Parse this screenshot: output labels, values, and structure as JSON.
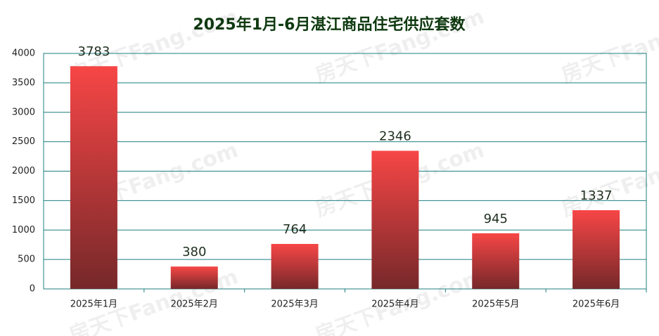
{
  "chart_data": {
    "type": "bar",
    "title": "2025年1月-6月湛江商品住宅供应套数",
    "categories": [
      "2025年1月",
      "2025年2月",
      "2025年3月",
      "2025年4月",
      "2025年5月",
      "2025年6月"
    ],
    "values": [
      3783,
      380,
      764,
      2346,
      945,
      1337
    ],
    "color": "#f74646",
    "ylim": [
      0,
      4000
    ],
    "yticks": [
      0,
      500,
      1000,
      1500,
      2000,
      2500,
      3000,
      3500,
      4000
    ],
    "grid": true,
    "watermark": "房天下Fang.com"
  }
}
